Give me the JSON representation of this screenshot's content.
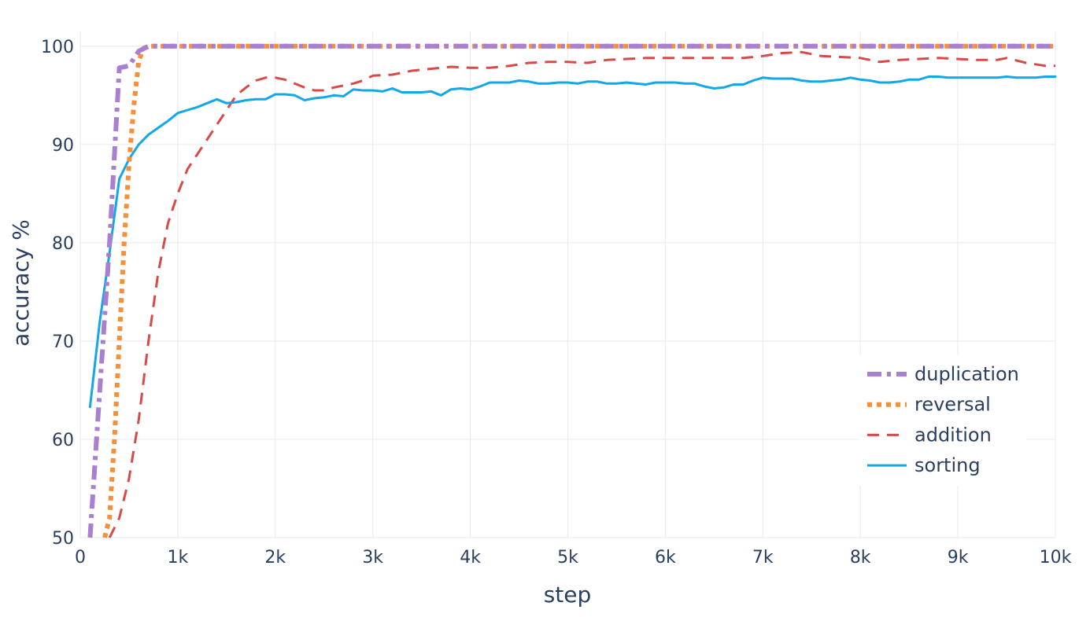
{
  "chart_data": {
    "type": "line",
    "xlabel": "step",
    "ylabel": "accuracy %",
    "xlim": [
      0,
      10000
    ],
    "ylim": [
      50,
      101.5
    ],
    "grid": true,
    "legend_position": "bottom-right",
    "x_ticks": [
      {
        "value": 0,
        "label": "0"
      },
      {
        "value": 1000,
        "label": "1k"
      },
      {
        "value": 2000,
        "label": "2k"
      },
      {
        "value": 3000,
        "label": "3k"
      },
      {
        "value": 4000,
        "label": "4k"
      },
      {
        "value": 5000,
        "label": "5k"
      },
      {
        "value": 6000,
        "label": "6k"
      },
      {
        "value": 7000,
        "label": "7k"
      },
      {
        "value": 8000,
        "label": "8k"
      },
      {
        "value": 9000,
        "label": "9k"
      },
      {
        "value": 10000,
        "label": "10k"
      }
    ],
    "y_ticks": [
      {
        "value": 50,
        "label": "50"
      },
      {
        "value": 60,
        "label": "60"
      },
      {
        "value": 70,
        "label": "70"
      },
      {
        "value": 80,
        "label": "80"
      },
      {
        "value": 90,
        "label": "90"
      },
      {
        "value": 100,
        "label": "100"
      }
    ],
    "series": [
      {
        "name": "duplication",
        "color": "#a97fd0",
        "dash": "dashdot",
        "x": [
          100,
          200,
          300,
          400,
          500,
          600,
          700,
          800,
          1000,
          1500,
          2000,
          3000,
          4000,
          5000,
          6000,
          7000,
          8000,
          9000,
          10000
        ],
        "y": [
          50,
          65,
          80,
          97.8,
          98,
          99.5,
          100,
          100,
          100,
          100,
          100,
          100,
          100,
          100,
          100,
          100,
          100,
          100,
          100
        ]
      },
      {
        "name": "reversal",
        "color": "#f58f3a",
        "dash": "dot",
        "x": [
          250,
          300,
          350,
          400,
          450,
          500,
          550,
          600,
          650,
          700,
          800,
          1000,
          2000,
          3000,
          4000,
          5000,
          6000,
          7000,
          8000,
          9000,
          10000
        ],
        "y": [
          50,
          52,
          60,
          70,
          80,
          88,
          94,
          98.5,
          99.8,
          100,
          100,
          100,
          100,
          100,
          100,
          100,
          100,
          100,
          100,
          100,
          100
        ]
      },
      {
        "name": "addition",
        "color": "#d94a46",
        "dash": "dash",
        "x": [
          300,
          400,
          500,
          600,
          700,
          800,
          900,
          1000,
          1100,
          1200,
          1300,
          1400,
          1500,
          1600,
          1700,
          1800,
          1900,
          2000,
          2100,
          2200,
          2300,
          2400,
          2500,
          2600,
          2700,
          2800,
          2900,
          3000,
          3200,
          3400,
          3600,
          3800,
          4000,
          4200,
          4400,
          4600,
          4800,
          5000,
          5200,
          5400,
          5600,
          5800,
          6000,
          6200,
          6400,
          6600,
          6800,
          7000,
          7200,
          7400,
          7600,
          7800,
          8000,
          8200,
          8400,
          8600,
          8800,
          9000,
          9200,
          9400,
          9500,
          9700,
          9900,
          10000
        ],
        "y": [
          50,
          52,
          56,
          62,
          70,
          77,
          82,
          85,
          87.5,
          89,
          90.5,
          92,
          93.5,
          95,
          95.8,
          96.5,
          96.8,
          96.8,
          96.6,
          96.2,
          95.8,
          95.5,
          95.5,
          95.8,
          96.0,
          96.2,
          96.5,
          97.0,
          97.1,
          97.5,
          97.7,
          97.9,
          97.8,
          97.8,
          98.0,
          98.3,
          98.4,
          98.4,
          98.3,
          98.6,
          98.7,
          98.8,
          98.8,
          98.8,
          98.8,
          98.8,
          98.8,
          99.0,
          99.3,
          99.4,
          99.0,
          98.9,
          98.8,
          98.4,
          98.6,
          98.7,
          98.8,
          98.7,
          98.6,
          98.6,
          98.8,
          98.3,
          98.0,
          98.0
        ]
      },
      {
        "name": "sorting",
        "color": "#12a7e8",
        "dash": "solid",
        "x": [
          100,
          200,
          300,
          400,
          500,
          600,
          700,
          800,
          900,
          1000,
          1100,
          1200,
          1300,
          1400,
          1500,
          1600,
          1700,
          1800,
          1900,
          2000,
          2100,
          2200,
          2300,
          2400,
          2500,
          2600,
          2700,
          2800,
          2900,
          3000,
          3100,
          3200,
          3300,
          3400,
          3500,
          3600,
          3700,
          3800,
          3900,
          4000,
          4100,
          4200,
          4300,
          4400,
          4500,
          4600,
          4700,
          4800,
          4900,
          5000,
          5100,
          5200,
          5300,
          5400,
          5500,
          5600,
          5700,
          5800,
          5900,
          6000,
          6100,
          6200,
          6300,
          6400,
          6500,
          6600,
          6700,
          6800,
          6900,
          7000,
          7100,
          7200,
          7300,
          7400,
          7500,
          7600,
          7700,
          7800,
          7900,
          8000,
          8100,
          8200,
          8300,
          8400,
          8500,
          8600,
          8700,
          8800,
          8900,
          9000,
          9100,
          9200,
          9300,
          9400,
          9500,
          9600,
          9700,
          9800,
          9900,
          10000
        ],
        "y": [
          63.3,
          72,
          79,
          86.5,
          88.5,
          90,
          91,
          91.7,
          92.4,
          93.2,
          93.5,
          93.8,
          94.2,
          94.6,
          94.2,
          94.3,
          94.5,
          94.6,
          94.6,
          95.1,
          95.1,
          95.0,
          94.5,
          94.7,
          94.8,
          95.0,
          94.9,
          95.6,
          95.5,
          95.5,
          95.4,
          95.7,
          95.3,
          95.3,
          95.3,
          95.4,
          95.0,
          95.6,
          95.7,
          95.6,
          95.9,
          96.3,
          96.3,
          96.3,
          96.5,
          96.4,
          96.2,
          96.2,
          96.3,
          96.3,
          96.2,
          96.4,
          96.4,
          96.2,
          96.2,
          96.3,
          96.2,
          96.1,
          96.3,
          96.3,
          96.3,
          96.2,
          96.2,
          95.9,
          95.7,
          95.8,
          96.1,
          96.1,
          96.5,
          96.8,
          96.7,
          96.7,
          96.7,
          96.5,
          96.4,
          96.4,
          96.5,
          96.6,
          96.8,
          96.6,
          96.5,
          96.3,
          96.3,
          96.4,
          96.6,
          96.6,
          96.9,
          96.9,
          96.8,
          96.8,
          96.8,
          96.8,
          96.8,
          96.8,
          96.9,
          96.8,
          96.8,
          96.8,
          96.9,
          96.9
        ]
      }
    ]
  }
}
